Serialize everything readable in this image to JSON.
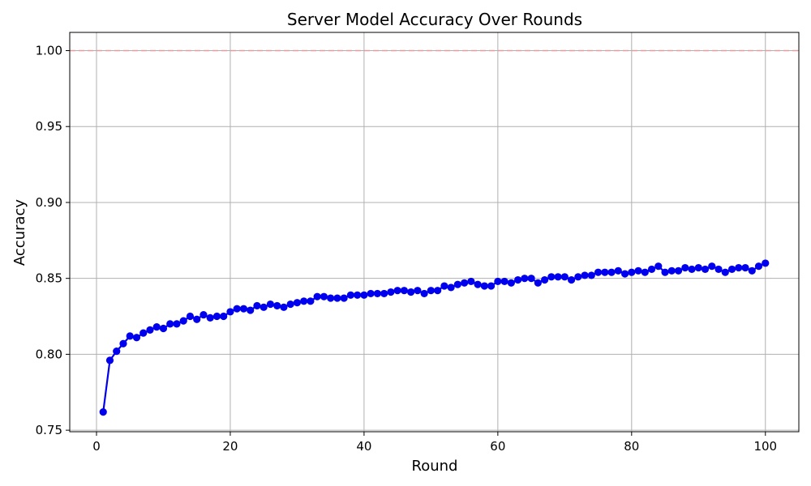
{
  "chart_data": {
    "type": "line",
    "title": "Server Model Accuracy Over Rounds",
    "xlabel": "Round",
    "ylabel": "Accuracy",
    "xlim": [
      -4,
      105
    ],
    "ylim": [
      0.749,
      1.012
    ],
    "xticks": [
      0,
      20,
      40,
      60,
      80,
      100
    ],
    "yticks": [
      0.75,
      0.8,
      0.85,
      0.9,
      0.95,
      1.0
    ],
    "xtick_labels": [
      "0",
      "20",
      "40",
      "60",
      "80",
      "100"
    ],
    "ytick_labels": [
      "0.75",
      "0.80",
      "0.85",
      "0.90",
      "0.95",
      "1.00"
    ],
    "grid": true,
    "reference_line": {
      "y": 1.0,
      "color": "#e89a9a",
      "style": "dashed"
    },
    "series": [
      {
        "color": "#0000ee",
        "marker": "circle",
        "x": [
          1,
          2,
          3,
          4,
          5,
          6,
          7,
          8,
          9,
          10,
          11,
          12,
          13,
          14,
          15,
          16,
          17,
          18,
          19,
          20,
          21,
          22,
          23,
          24,
          25,
          26,
          27,
          28,
          29,
          30,
          31,
          32,
          33,
          34,
          35,
          36,
          37,
          38,
          39,
          40,
          41,
          42,
          43,
          44,
          45,
          46,
          47,
          48,
          49,
          50,
          51,
          52,
          53,
          54,
          55,
          56,
          57,
          58,
          59,
          60,
          61,
          62,
          63,
          64,
          65,
          66,
          67,
          68,
          69,
          70,
          71,
          72,
          73,
          74,
          75,
          76,
          77,
          78,
          79,
          80,
          81,
          82,
          83,
          84,
          85,
          86,
          87,
          88,
          89,
          90,
          91,
          92,
          93,
          94,
          95,
          96,
          97,
          98,
          99,
          100
        ],
        "values": [
          0.762,
          0.796,
          0.802,
          0.807,
          0.812,
          0.811,
          0.814,
          0.816,
          0.818,
          0.817,
          0.82,
          0.82,
          0.822,
          0.825,
          0.823,
          0.826,
          0.824,
          0.825,
          0.825,
          0.828,
          0.83,
          0.83,
          0.829,
          0.832,
          0.831,
          0.833,
          0.832,
          0.831,
          0.833,
          0.834,
          0.835,
          0.835,
          0.838,
          0.838,
          0.837,
          0.837,
          0.837,
          0.839,
          0.839,
          0.839,
          0.84,
          0.84,
          0.84,
          0.841,
          0.842,
          0.842,
          0.841,
          0.842,
          0.84,
          0.842,
          0.842,
          0.845,
          0.844,
          0.846,
          0.847,
          0.848,
          0.846,
          0.845,
          0.845,
          0.848,
          0.848,
          0.847,
          0.849,
          0.85,
          0.85,
          0.847,
          0.849,
          0.851,
          0.851,
          0.851,
          0.849,
          0.851,
          0.852,
          0.852,
          0.854,
          0.854,
          0.854,
          0.855,
          0.853,
          0.854,
          0.855,
          0.854,
          0.856,
          0.858,
          0.854,
          0.855,
          0.855,
          0.857,
          0.856,
          0.857,
          0.856,
          0.858,
          0.856,
          0.854,
          0.856,
          0.857,
          0.857,
          0.855,
          0.858,
          0.86
        ]
      }
    ]
  }
}
